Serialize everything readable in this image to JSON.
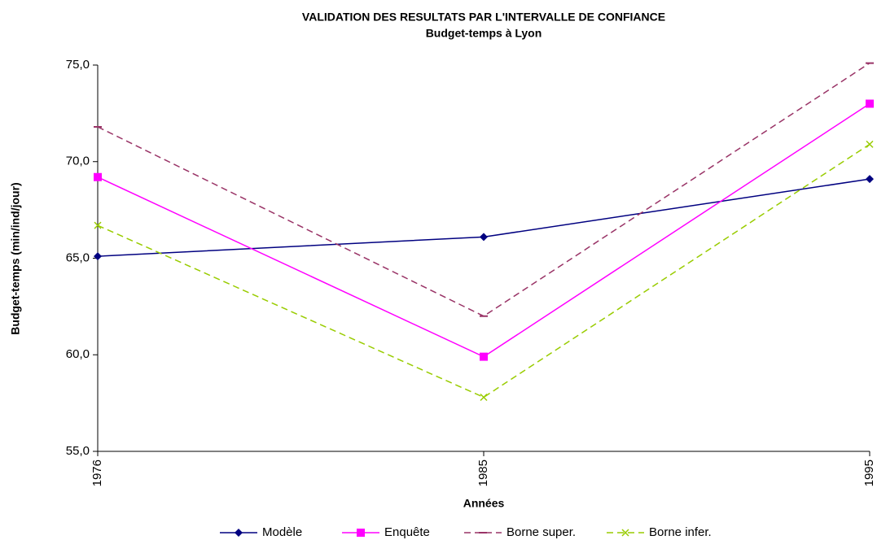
{
  "chart_data": {
    "type": "line",
    "title": "VALIDATION DES RESULTATS PAR L'INTERVALLE DE CONFIANCE",
    "subtitle": "Budget-temps à Lyon",
    "x_label": "Années",
    "y_label": "Budget-temps (min/ind/jour)",
    "categories": [
      "1976",
      "1985",
      "1995"
    ],
    "ylim": [
      55,
      75
    ],
    "yticks": [
      {
        "value": 55,
        "label": "55,0"
      },
      {
        "value": 60,
        "label": "60,0"
      },
      {
        "value": 65,
        "label": "65,0"
      },
      {
        "value": 70,
        "label": "70,0"
      },
      {
        "value": 75,
        "label": "75,0"
      }
    ],
    "series": [
      {
        "name": "Modèle",
        "color": "#000080",
        "marker": "diamond",
        "dash": false,
        "values": [
          65.1,
          66.1,
          69.1
        ]
      },
      {
        "name": "Enquête",
        "color": "#ff00ff",
        "marker": "square",
        "dash": false,
        "values": [
          69.2,
          59.9,
          73.0
        ]
      },
      {
        "name": "Borne super.",
        "color": "#993366",
        "marker": "dash",
        "dash": true,
        "values": [
          71.8,
          62.0,
          75.1
        ]
      },
      {
        "name": "Borne infer.",
        "color": "#99cc00",
        "marker": "x",
        "dash": true,
        "values": [
          66.7,
          57.8,
          70.9
        ]
      }
    ]
  }
}
